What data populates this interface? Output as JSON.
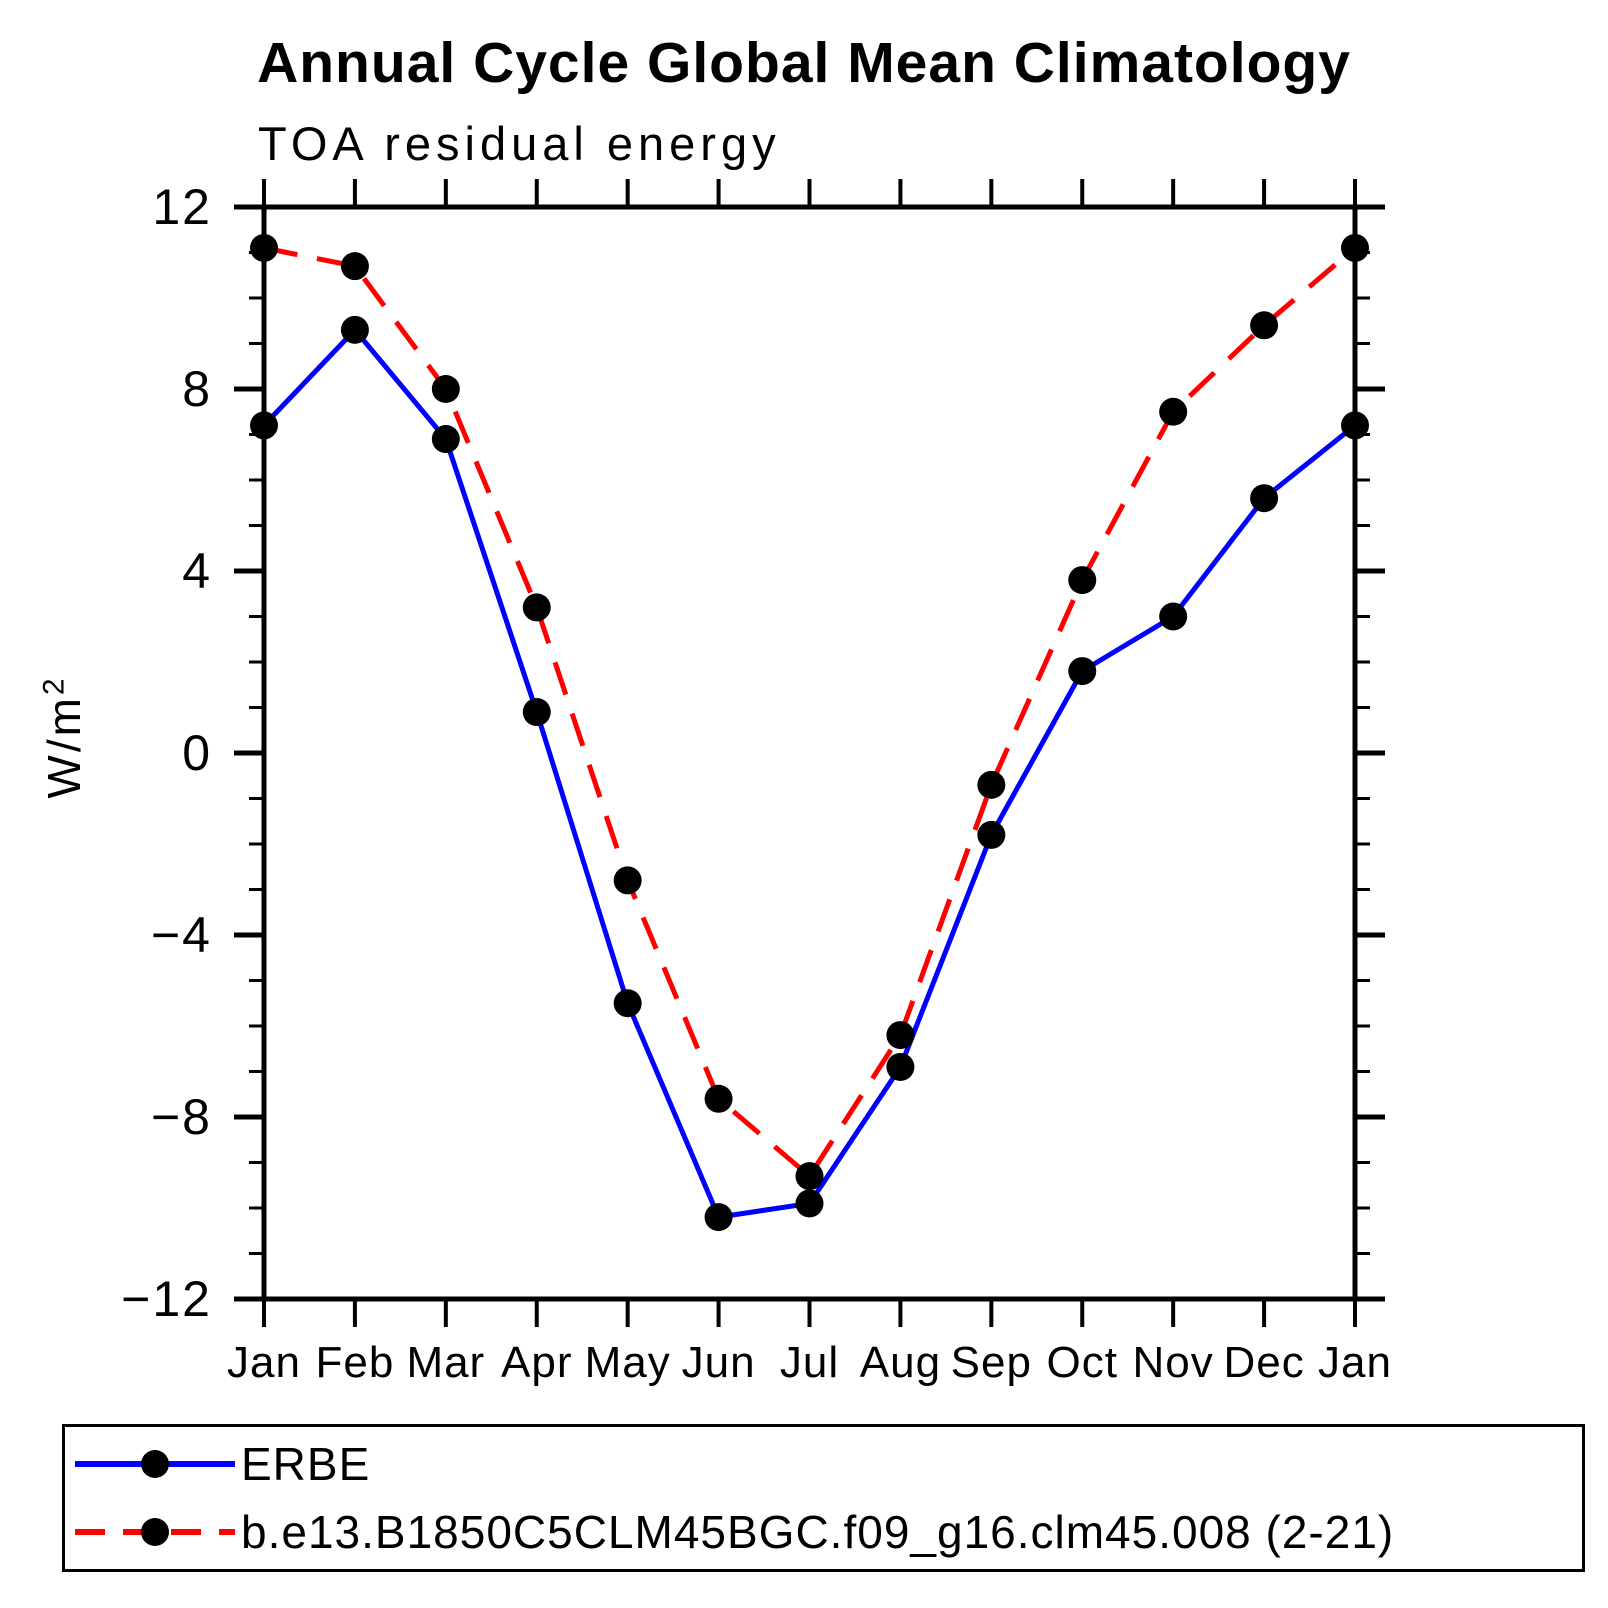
{
  "header": {
    "title": "Annual Cycle Global Mean Climatology",
    "subtitle": "TOA residual energy"
  },
  "axes": {
    "y_label_base": "W/m",
    "y_label_sup": "2",
    "y_tick_values": [
      12,
      8,
      4,
      0,
      -4,
      -8,
      -12
    ],
    "y_tick_labels": [
      "12",
      "8",
      "4",
      "0",
      "−4",
      "−8",
      "−12"
    ],
    "y_minor_step": 1,
    "x_tick_labels": [
      "Jan",
      "Feb",
      "Mar",
      "Apr",
      "May",
      "Jun",
      "Jul",
      "Aug",
      "Sep",
      "Oct",
      "Nov",
      "Dec",
      "Jan"
    ]
  },
  "legend": {
    "items": [
      {
        "label": "ERBE",
        "color": "#0000ff",
        "dash": "solid"
      },
      {
        "label": "b.e13.B1850C5CLM45BGC.f09_g16.clm45.008 (2-21)",
        "color": "#ff0000",
        "dash": "dashed"
      }
    ]
  },
  "colors": {
    "erbe_line": "#0000ff",
    "model_line": "#ff0000",
    "marker": "#000000",
    "axis": "#000000"
  },
  "chart_data": {
    "type": "line",
    "title": "Annual Cycle Global Mean Climatology",
    "subtitle": "TOA residual energy",
    "ylabel": "W/m2",
    "ylim": [
      -12,
      12
    ],
    "grid": false,
    "legend_position": "bottom",
    "categories": [
      "Jan",
      "Feb",
      "Mar",
      "Apr",
      "May",
      "Jun",
      "Jul",
      "Aug",
      "Sep",
      "Oct",
      "Nov",
      "Dec",
      "Jan"
    ],
    "series": [
      {
        "name": "ERBE",
        "color": "#0000ff",
        "dash": "solid",
        "values": [
          7.2,
          9.3,
          6.9,
          0.9,
          -5.5,
          -10.2,
          -9.9,
          -6.9,
          -1.8,
          1.8,
          3.0,
          5.6,
          7.2
        ]
      },
      {
        "name": "b.e13.B1850C5CLM45BGC.f09_g16.clm45.008 (2-21)",
        "color": "#ff0000",
        "dash": "dashed",
        "values": [
          11.1,
          10.7,
          8.0,
          3.2,
          -2.8,
          -7.6,
          -9.3,
          -6.2,
          -0.7,
          3.8,
          7.5,
          9.4,
          11.1
        ]
      }
    ],
    "marker": {
      "color": "#000000",
      "radius": 14
    }
  }
}
